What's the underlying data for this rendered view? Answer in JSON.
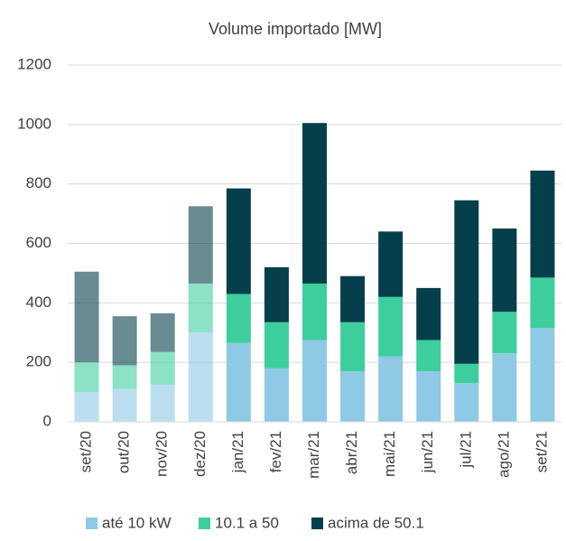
{
  "chart_data": {
    "type": "stacked_bar",
    "title": "Volume importado [MW]",
    "categories": [
      "set/20",
      "out/20",
      "nov/20",
      "dez/20",
      "jan/21",
      "fev/21",
      "mar/21",
      "abr/21",
      "mai/21",
      "jun/21",
      "jul/21",
      "ago/21",
      "set/21"
    ],
    "series": [
      {
        "name": "até 10 kW",
        "color": "#8ecae6",
        "values": [
          100,
          110,
          125,
          300,
          265,
          180,
          275,
          170,
          220,
          170,
          130,
          230,
          315
        ]
      },
      {
        "name": "10.1 a 50",
        "color": "#3dce9e",
        "values": [
          100,
          80,
          110,
          165,
          165,
          155,
          190,
          165,
          200,
          105,
          65,
          140,
          170
        ]
      },
      {
        "name": "acima de 50.1",
        "color": "#053f4b",
        "values": [
          305,
          165,
          130,
          260,
          355,
          185,
          540,
          155,
          220,
          175,
          550,
          280,
          360
        ]
      }
    ],
    "bar_opacity": [
      0.6,
      0.6,
      0.6,
      0.6,
      1,
      1,
      1,
      1,
      1,
      1,
      1,
      1,
      1
    ],
    "ylim": [
      0,
      1200
    ],
    "yticks": [
      0,
      200,
      400,
      600,
      800,
      1000,
      1200
    ],
    "grid": true,
    "legend": "bottom"
  }
}
